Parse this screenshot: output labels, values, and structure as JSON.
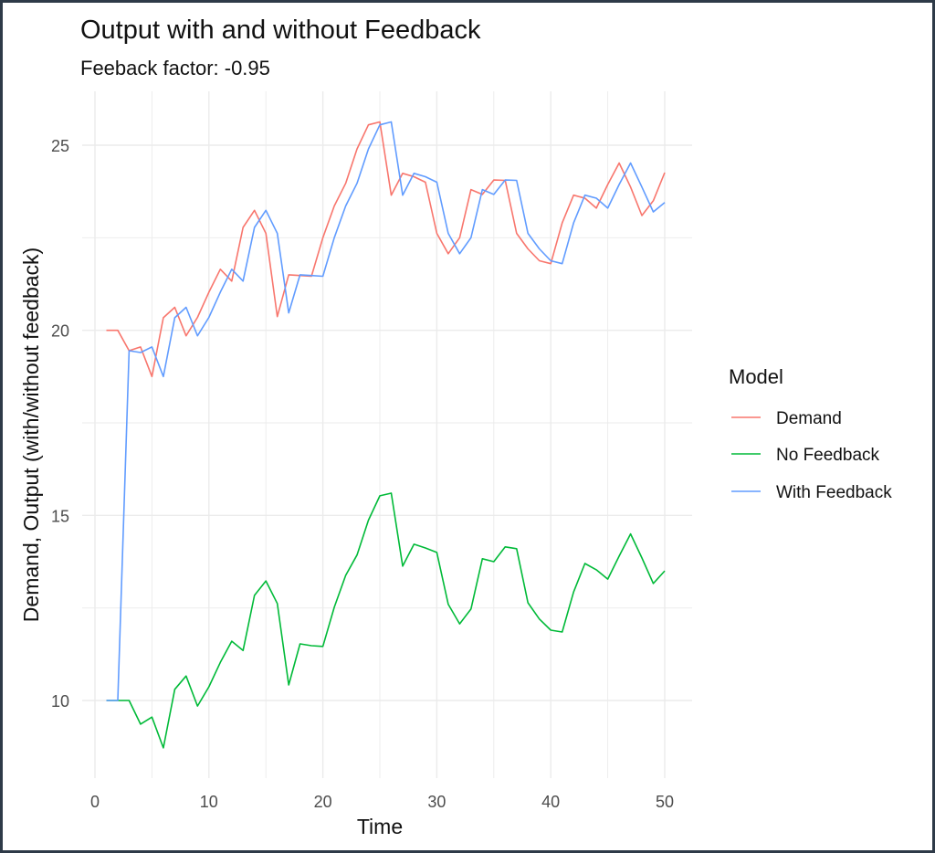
{
  "chart_data": {
    "type": "line",
    "title": "Output with and without Feedback",
    "subtitle": "Feeback factor: -0.95",
    "xlabel": "Time",
    "ylabel": "Demand, Output (with/without feedback)",
    "xlim": [
      0,
      50
    ],
    "ylim": [
      8.3,
      25.9
    ],
    "xticks": [
      0,
      10,
      20,
      30,
      40,
      50
    ],
    "yticks": [
      10,
      15,
      20,
      25
    ],
    "x_minor_step": 5,
    "y_minor_step": 2.5,
    "grid": true,
    "legend": {
      "title": "Model",
      "position": "right"
    },
    "x": [
      1,
      2,
      3,
      4,
      5,
      6,
      7,
      8,
      9,
      10,
      11,
      12,
      13,
      14,
      15,
      16,
      17,
      18,
      19,
      20,
      21,
      22,
      23,
      24,
      25,
      26,
      27,
      28,
      29,
      30,
      31,
      32,
      33,
      34,
      35,
      36,
      37,
      38,
      39,
      40,
      41,
      42,
      43,
      44,
      45,
      46,
      47,
      48,
      49,
      50
    ],
    "series": [
      {
        "name": "Demand",
        "color": "#F8766D",
        "values": [
          20.0,
          20.0,
          19.45,
          19.55,
          18.75,
          20.34,
          20.62,
          19.85,
          20.35,
          21.03,
          21.65,
          21.33,
          22.78,
          23.24,
          22.62,
          20.37,
          21.5,
          21.48,
          21.46,
          22.5,
          23.36,
          23.97,
          24.9,
          25.55,
          25.63,
          23.65,
          24.24,
          24.15,
          24.0,
          22.62,
          22.07,
          22.5,
          23.8,
          23.67,
          24.06,
          24.05,
          22.62,
          22.2,
          21.88,
          21.8,
          22.9,
          23.65,
          23.57,
          23.3,
          23.94,
          24.52,
          23.87,
          23.1,
          23.5,
          24.26
        ]
      },
      {
        "name": "No Feedback",
        "color": "#00BA38",
        "values": [
          10.0,
          10.0,
          10.0,
          9.36,
          9.55,
          8.72,
          10.3,
          10.66,
          9.85,
          10.37,
          11.03,
          11.6,
          11.35,
          12.84,
          13.23,
          12.62,
          10.42,
          11.53,
          11.48,
          11.46,
          12.52,
          13.38,
          13.93,
          14.87,
          15.53,
          15.6,
          13.63,
          14.22,
          14.12,
          14.0,
          12.6,
          12.07,
          12.47,
          13.83,
          13.75,
          14.15,
          14.1,
          12.64,
          12.2,
          11.9,
          11.85,
          12.93,
          13.7,
          13.53,
          13.28,
          13.9,
          14.5,
          13.85,
          13.16,
          13.5
        ]
      },
      {
        "name": "With Feedback",
        "color": "#619CFF",
        "values": [
          10.0,
          10.0,
          19.45,
          19.4,
          19.55,
          18.75,
          20.34,
          20.62,
          19.85,
          20.35,
          21.03,
          21.65,
          21.33,
          22.78,
          23.24,
          22.62,
          20.47,
          21.5,
          21.48,
          21.46,
          22.5,
          23.36,
          23.97,
          24.9,
          25.55,
          25.63,
          23.65,
          24.24,
          24.15,
          24.0,
          22.62,
          22.07,
          22.5,
          23.8,
          23.67,
          24.06,
          24.05,
          22.62,
          22.2,
          21.88,
          21.8,
          22.9,
          23.65,
          23.57,
          23.3,
          23.94,
          24.52,
          23.87,
          23.2,
          23.45
        ]
      }
    ]
  }
}
